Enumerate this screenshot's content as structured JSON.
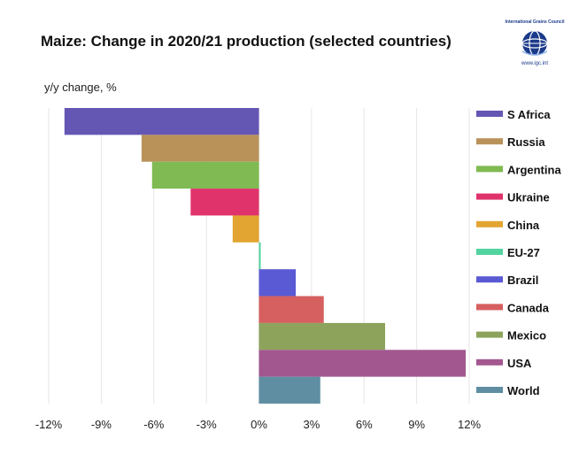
{
  "logo": {
    "org_name": "International Grains Council",
    "url": "www.igc.int"
  },
  "chart_data": {
    "type": "bar",
    "orientation": "horizontal",
    "title": "Maize: Change in 2020/21 production (selected countries)",
    "ylabel": "y/y change, %",
    "categories": [
      "S Africa",
      "Russia",
      "Argentina",
      "Ukraine",
      "China",
      "EU-27",
      "Brazil",
      "Canada",
      "Mexico",
      "USA",
      "World"
    ],
    "values": [
      -11.1,
      -6.7,
      -6.1,
      -3.9,
      -1.5,
      0.1,
      2.1,
      3.7,
      7.2,
      11.8,
      3.5
    ],
    "colors": [
      "#6457b4",
      "#b9925a",
      "#7fba52",
      "#e0336b",
      "#e3a531",
      "#52d4a0",
      "#5a5ad4",
      "#d65f5f",
      "#8da35c",
      "#a3578f",
      "#5f8ea3"
    ],
    "xlim": [
      -12,
      12
    ],
    "xticks": [
      "-12%",
      "-9%",
      "-6%",
      "-3%",
      "0%",
      "3%",
      "6%",
      "9%",
      "12%"
    ],
    "grid": true,
    "legend": "right"
  }
}
